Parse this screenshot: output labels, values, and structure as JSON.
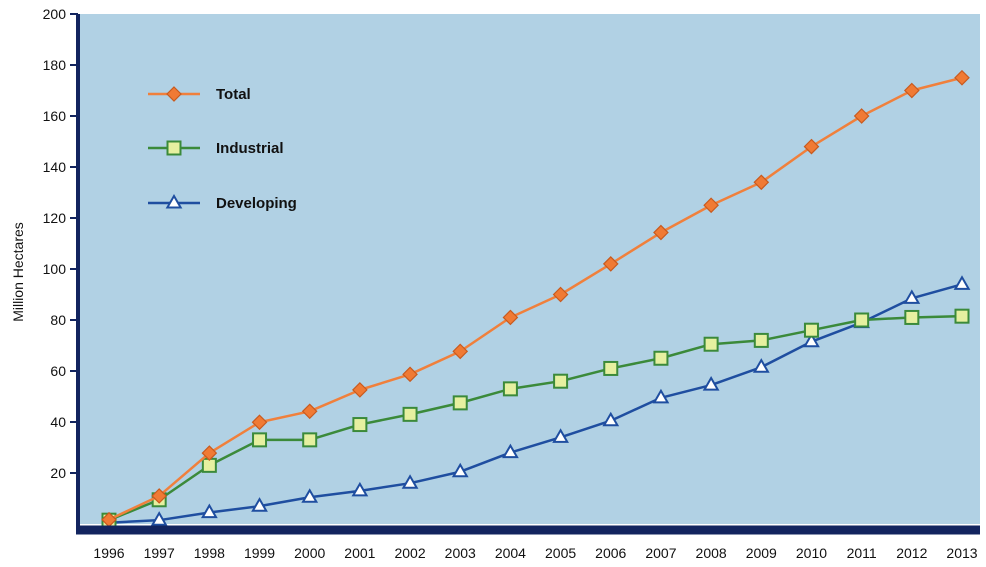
{
  "chart_data": {
    "type": "line",
    "title": "",
    "xlabel": "",
    "ylabel": "Million Hectares",
    "x": [
      "1996",
      "1997",
      "1998",
      "1999",
      "2000",
      "2001",
      "2002",
      "2003",
      "2004",
      "2005",
      "2006",
      "2007",
      "2008",
      "2009",
      "2010",
      "2011",
      "2012",
      "2013"
    ],
    "ylim": [
      0,
      200
    ],
    "yticks": [
      20,
      40,
      60,
      80,
      100,
      120,
      140,
      160,
      180,
      200
    ],
    "grid": false,
    "legend_position": "top-left",
    "background_color": "#b1d1e4",
    "axis_color": "#12245f",
    "series": [
      {
        "name": "Total",
        "marker": "diamond",
        "color": "#f0803c",
        "marker_fill": "#f07a34",
        "values": [
          1.7,
          11,
          27.8,
          39.9,
          44.2,
          52.6,
          58.7,
          67.7,
          81,
          90,
          102,
          114.3,
          125,
          134,
          148,
          160,
          170,
          175
        ]
      },
      {
        "name": "Industrial",
        "marker": "square",
        "color": "#3b8a3a",
        "marker_fill": "#e6f0a0",
        "values": [
          1.5,
          9.5,
          23,
          33,
          33,
          39,
          43,
          47.5,
          53,
          56,
          61,
          65,
          70.5,
          72,
          76,
          80,
          81,
          81.5
        ]
      },
      {
        "name": "Developing",
        "marker": "triangle",
        "color": "#1f4ea0",
        "marker_fill": "#ffffff",
        "values": [
          0.5,
          1.5,
          4.5,
          7,
          10.5,
          13,
          16,
          20.5,
          28,
          34,
          40.5,
          49.5,
          54.5,
          61.5,
          71.5,
          79,
          88.5,
          94
        ]
      }
    ]
  }
}
